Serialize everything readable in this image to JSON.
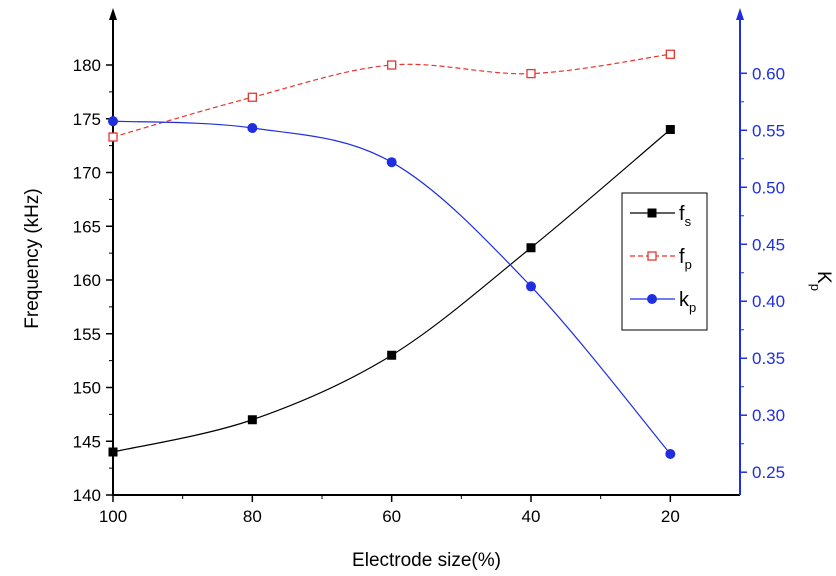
{
  "chart_data": {
    "type": "line",
    "x": [
      100,
      80,
      60,
      40,
      20
    ],
    "xlabel": "Electrode size(%)",
    "xlim": [
      100,
      10
    ],
    "xticks": [
      100,
      80,
      60,
      40,
      20
    ],
    "xtick_labels": [
      "100",
      "80",
      "60",
      "40",
      "20"
    ],
    "ylabel_left": "Frequency (kHz)",
    "ylim_left": [
      140,
      184
    ],
    "yticks_left": [
      140,
      145,
      150,
      155,
      160,
      165,
      170,
      175,
      180
    ],
    "ytick_labels_left": [
      "140",
      "145",
      "150",
      "155",
      "160",
      "165",
      "170",
      "175",
      "180"
    ],
    "ylabel_right": "K",
    "ylabel_right_sub": "p",
    "ylim_right": [
      0.23,
      0.645
    ],
    "yticks_right": [
      0.25,
      0.3,
      0.35,
      0.4,
      0.45,
      0.5,
      0.55,
      0.6
    ],
    "ytick_labels_right": [
      "0.25",
      "0.30",
      "0.35",
      "0.40",
      "0.45",
      "0.50",
      "0.55",
      "0.60"
    ],
    "grid": false,
    "legend_position": "right",
    "series": [
      {
        "name": "f",
        "name_sub": "s",
        "axis": "left",
        "values": [
          144,
          147,
          153,
          163,
          174
        ],
        "color": "#000000",
        "marker": "filled-square",
        "line": "solid"
      },
      {
        "name": "f",
        "name_sub": "p",
        "axis": "left",
        "values": [
          173.3,
          177,
          180,
          179.2,
          181
        ],
        "color": "#e8352f",
        "marker": "open-square",
        "line": "dashed"
      },
      {
        "name": "k",
        "name_sub": "p",
        "axis": "right",
        "values": [
          0.558,
          0.552,
          0.522,
          0.413,
          0.266
        ],
        "color": "#1f2fe0",
        "marker": "filled-circle",
        "line": "solid"
      }
    ]
  }
}
